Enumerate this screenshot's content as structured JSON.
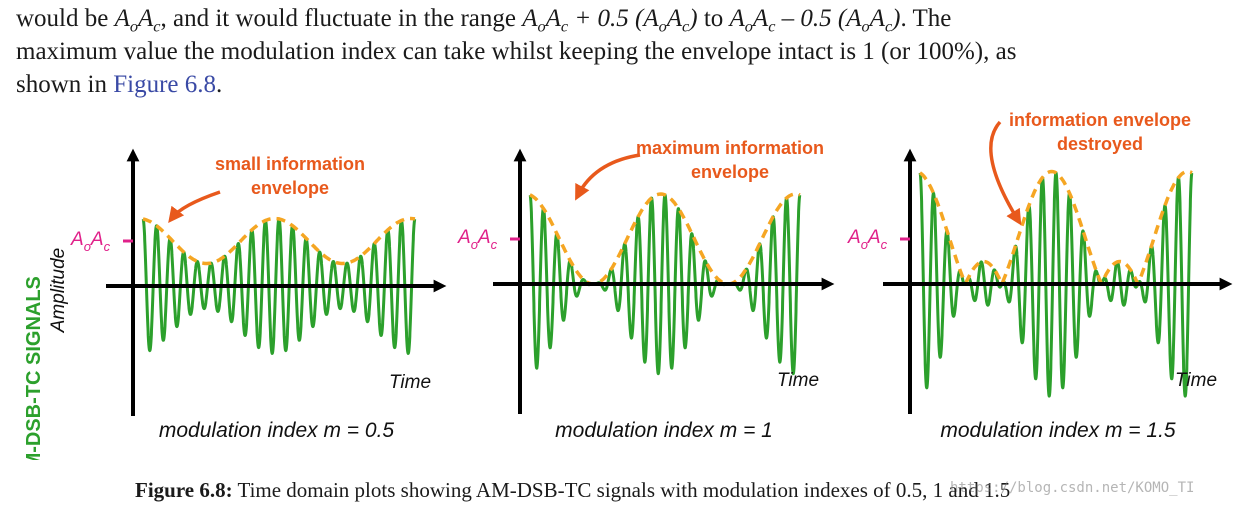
{
  "paragraph": {
    "line1_pre": "would be ",
    "line1_mid1": ", and it would fluctuate in the range ",
    "line1_mid2": " to ",
    "line1_post": ". The",
    "expr_plus": " + 0.5 (",
    "expr_minus": " – 0.5 (",
    "close_paren": ")",
    "line2": "maximum value the modulation index can take whilst keeping the envelope intact is 1 (or 100%), as",
    "line3_pre": "shown in ",
    "link": "Figure 6.8",
    "line3_post": "."
  },
  "figure": {
    "side_title": "AM-DSB-TC SIGNALS",
    "amplitude_label": "Amplitude",
    "ao": "A",
    "ao_sub": "o",
    "ac": "A",
    "ac_sub": "c",
    "time_label": "Time",
    "panels": [
      {
        "m": 0.5,
        "modulation_label": "modulation index m = 0.5",
        "annotation": [
          "small information",
          "envelope"
        ]
      },
      {
        "m": 1,
        "modulation_label": "modulation index m = 1",
        "annotation": [
          "maximum information",
          "envelope"
        ]
      },
      {
        "m": 1.5,
        "modulation_label": "modulation index m = 1.5",
        "annotation": [
          "information envelope",
          "destroyed"
        ]
      }
    ]
  },
  "colors": {
    "signal": "#2ca02c",
    "envelope": "#f5a623",
    "annotation": "#e8591c",
    "marker": "#e0218a",
    "link": "#3a4aa5"
  },
  "caption": {
    "label": "Figure 6.8:",
    "text": " Time domain plots showing AM-DSB-TC signals with modulation indexes of 0.5, 1 and 1.5"
  },
  "watermark": "https://blog.csdn.net/KOMO_TI"
}
